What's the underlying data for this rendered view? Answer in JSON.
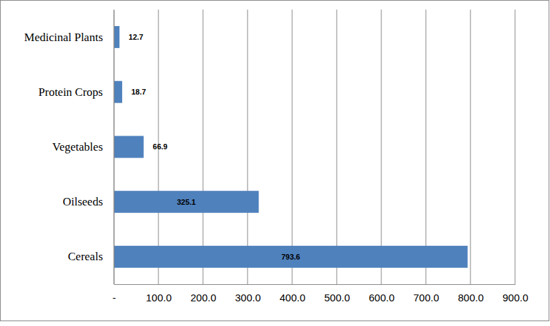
{
  "chart_data": {
    "type": "bar",
    "orientation": "horizontal",
    "categories": [
      "Cereals",
      "Oilseeds",
      "Vegetables",
      "Protein Crops",
      "Medicinal Plants"
    ],
    "values": [
      793.6,
      325.1,
      66.9,
      18.7,
      12.7
    ],
    "color": "#4f81bd",
    "xlim": [
      0,
      900
    ],
    "xticks": [
      {
        "value": 0,
        "label": "-"
      },
      {
        "value": 100,
        "label": "100.0"
      },
      {
        "value": 200,
        "label": "200.0"
      },
      {
        "value": 300,
        "label": "300.0"
      },
      {
        "value": 400,
        "label": "400.0"
      },
      {
        "value": 500,
        "label": "500.0"
      },
      {
        "value": 600,
        "label": "600.0"
      },
      {
        "value": 700,
        "label": "700.0"
      },
      {
        "value": 800,
        "label": "800.0"
      },
      {
        "value": 900,
        "label": "900.0"
      }
    ],
    "grid": true,
    "data_labels": true
  }
}
